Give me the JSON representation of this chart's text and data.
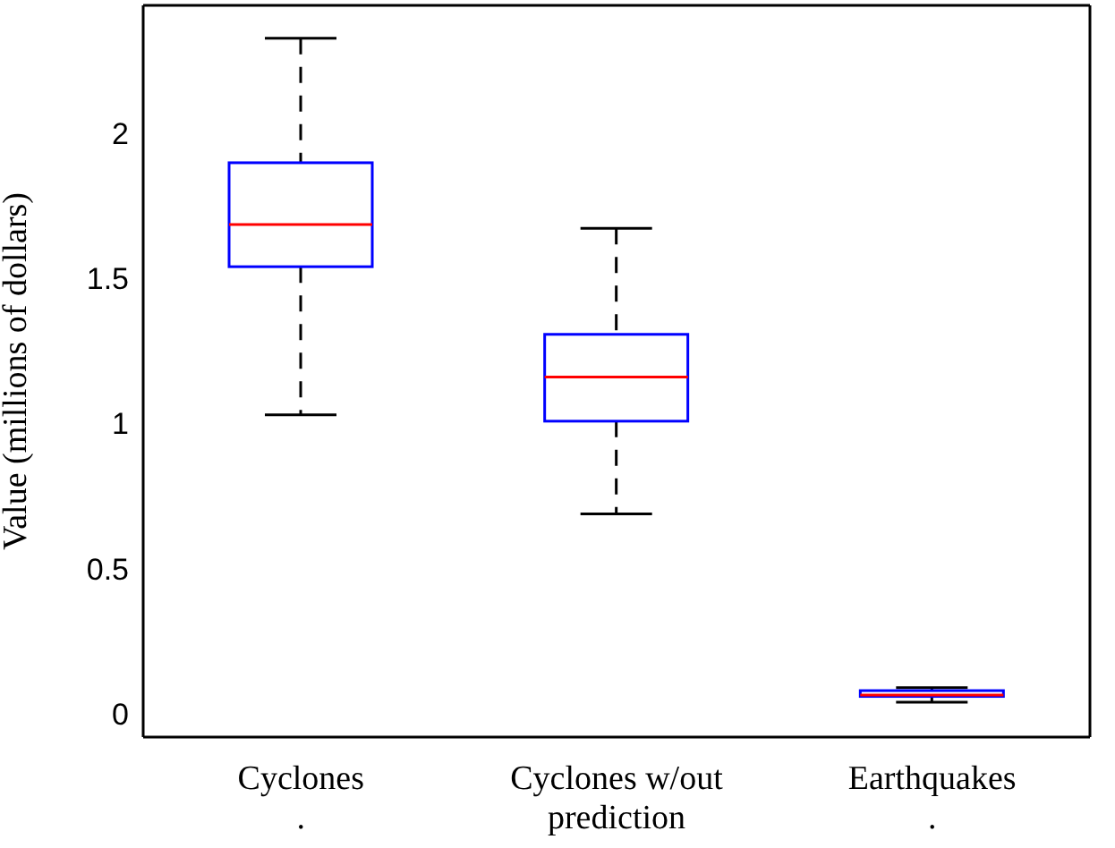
{
  "chart_data": {
    "type": "box",
    "ylabel": "Value (millions of dollars)",
    "categories": [
      "Cyclones\n.",
      "Cyclones w/out\nprediction",
      "Earthquakes\n."
    ],
    "series": [
      {
        "color": "#0000ff",
        "boxes": [
          {
            "low": 1.03,
            "q1": 1.54,
            "median": 1.685,
            "q3": 1.898,
            "high": 2.327
          },
          {
            "low": 0.689,
            "q1": 1.008,
            "median": 1.16,
            "q3": 1.307,
            "high": 1.672
          },
          {
            "low": 0.04,
            "q1": 0.06,
            "median": 0.065,
            "q3": 0.08,
            "high": 0.09
          }
        ]
      }
    ],
    "ylim": [
      -0.08,
      2.44
    ],
    "yticks": [
      0,
      0.5,
      1,
      1.5,
      2
    ]
  }
}
